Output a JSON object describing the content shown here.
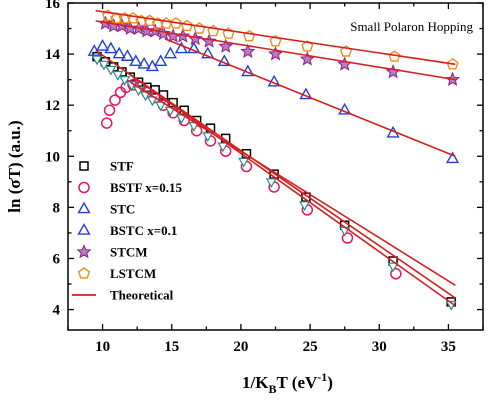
{
  "chart_data": {
    "type": "scatter",
    "annotation": "Small Polaron Hopping",
    "xlabel": {
      "main": "1/K",
      "sub": "B",
      "after": "T (eV",
      "sup": "-1",
      "end": ")"
    },
    "ylabel": "ln (σT) (a.u.)",
    "xlim": [
      7.5,
      37.5
    ],
    "ylim": [
      3.2,
      16
    ],
    "xticks": [
      10,
      15,
      20,
      25,
      30,
      35
    ],
    "yticks": [
      4,
      6,
      8,
      10,
      12,
      14,
      16
    ],
    "grid": false,
    "legend_position": "lower-left",
    "colors": {
      "STF": "#000000",
      "BSTF x=0.15": "#e8175d",
      "STC": "#1f3fe0",
      "BSTC x=0.1": "#1f3fe0",
      "STCM": "#8b2a8b",
      "LSTCM": "#f28c1e",
      "Theoretical": "#d62020"
    },
    "series": [
      {
        "name": "STF",
        "marker": "square",
        "x": [
          9.6,
          10.2,
          10.8,
          11.4,
          12.0,
          12.6,
          13.2,
          13.8,
          14.4,
          15.1,
          15.9,
          16.8,
          17.8,
          18.9,
          20.4,
          22.4,
          24.7,
          27.5,
          31.0,
          35.2
        ],
        "y": [
          13.9,
          13.7,
          13.5,
          13.3,
          13.1,
          12.9,
          12.7,
          12.6,
          12.4,
          12.1,
          11.8,
          11.4,
          11.1,
          10.7,
          10.1,
          9.3,
          8.4,
          7.3,
          5.9,
          4.3
        ]
      },
      {
        "name": "BSTF x=0.15",
        "marker": "circle",
        "x": [
          10.3,
          10.5,
          10.9,
          11.3,
          11.7,
          12.2,
          12.7,
          13.2,
          13.8,
          14.4,
          15.1,
          15.9,
          16.8,
          17.8,
          18.9,
          20.4,
          22.4,
          24.8,
          27.7,
          31.2
        ],
        "y": [
          11.3,
          11.8,
          12.2,
          12.5,
          12.7,
          12.8,
          12.7,
          12.5,
          12.3,
          12.0,
          11.7,
          11.4,
          11.0,
          10.6,
          10.2,
          9.6,
          8.8,
          7.9,
          6.8,
          5.4
        ]
      },
      {
        "name": "STC",
        "marker": "triangle",
        "x": [
          9.4,
          10.0,
          10.6,
          11.2,
          11.8,
          12.4,
          13.0,
          13.6,
          14.2,
          14.9,
          15.7,
          16.6,
          17.6,
          18.8,
          20.5,
          22.4,
          24.7,
          27.5,
          31.0,
          35.3
        ],
        "y": [
          14.1,
          14.3,
          14.2,
          14.0,
          13.9,
          13.7,
          13.6,
          13.5,
          13.7,
          14.0,
          14.2,
          14.2,
          14.0,
          13.7,
          13.3,
          12.9,
          12.4,
          11.8,
          10.9,
          9.9
        ]
      },
      {
        "name": "BSTC x=0.1",
        "marker": "triangle-down",
        "x": [
          9.6,
          10.1,
          10.6,
          11.1,
          11.6,
          12.1,
          12.6,
          13.1,
          13.6,
          14.2,
          14.9,
          15.7,
          16.6,
          17.6,
          18.7,
          20.2,
          22.2,
          24.6,
          27.5,
          31.0,
          35.2
        ],
        "y": [
          13.8,
          13.6,
          13.4,
          13.2,
          13.0,
          12.8,
          12.6,
          12.4,
          12.2,
          12.0,
          11.8,
          11.5,
          11.2,
          10.8,
          10.4,
          9.8,
          9.0,
          8.1,
          7.1,
          5.7,
          4.2
        ]
      },
      {
        "name": "STCM",
        "marker": "star",
        "x": [
          10.2,
          10.8,
          11.4,
          12.0,
          12.6,
          13.2,
          13.8,
          14.4,
          15.1,
          15.8,
          16.7,
          17.7,
          18.9,
          20.5,
          22.5,
          24.8,
          27.5,
          31.0,
          35.3
        ],
        "y": [
          15.2,
          15.1,
          15.1,
          15.0,
          15.0,
          14.9,
          14.9,
          14.8,
          14.7,
          14.7,
          14.6,
          14.5,
          14.3,
          14.1,
          14.0,
          13.8,
          13.6,
          13.3,
          13.0
        ]
      },
      {
        "name": "LSTCM",
        "marker": "pentagon",
        "x": [
          10.4,
          11.0,
          11.6,
          12.2,
          12.8,
          13.4,
          14.0,
          14.6,
          15.3,
          16.1,
          17.0,
          18.0,
          19.1,
          20.6,
          22.5,
          24.8,
          27.6,
          31.1,
          35.3
        ],
        "y": [
          15.5,
          15.4,
          15.4,
          15.4,
          15.3,
          15.3,
          15.2,
          15.2,
          15.2,
          15.1,
          15.0,
          14.9,
          14.8,
          14.7,
          14.5,
          14.3,
          14.1,
          13.9,
          13.6
        ]
      }
    ],
    "fit_lines": [
      {
        "name": "Theoretical",
        "x": [
          9.5,
          35.5
        ],
        "y": [
          15.7,
          13.6
        ]
      },
      {
        "name": "Theoretical",
        "x": [
          9.5,
          35.5
        ],
        "y": [
          15.3,
          13.0
        ]
      },
      {
        "name": "Theoretical",
        "x": [
          14.5,
          35.5
        ],
        "y": [
          14.6,
          10.0
        ]
      },
      {
        "name": "Theoretical",
        "x": [
          9.5,
          35.5
        ],
        "y": [
          14.15,
          4.15
        ]
      },
      {
        "name": "Theoretical",
        "x": [
          12.0,
          35.5
        ],
        "y": [
          13.2,
          4.45
        ]
      },
      {
        "name": "Theoretical",
        "x": [
          12.0,
          35.5
        ],
        "y": [
          12.9,
          4.95
        ]
      }
    ],
    "legend": [
      {
        "label": "STF",
        "marker": "square"
      },
      {
        "label": "BSTF x=0.15",
        "marker": "circle"
      },
      {
        "label": "STC",
        "marker": "triangle"
      },
      {
        "label": "BSTC x=0.1",
        "marker": "triangle"
      },
      {
        "label": "STCM",
        "marker": "star"
      },
      {
        "label": "LSTCM",
        "marker": "pentagon"
      },
      {
        "label": "Theoretical",
        "marker": "line"
      }
    ]
  }
}
